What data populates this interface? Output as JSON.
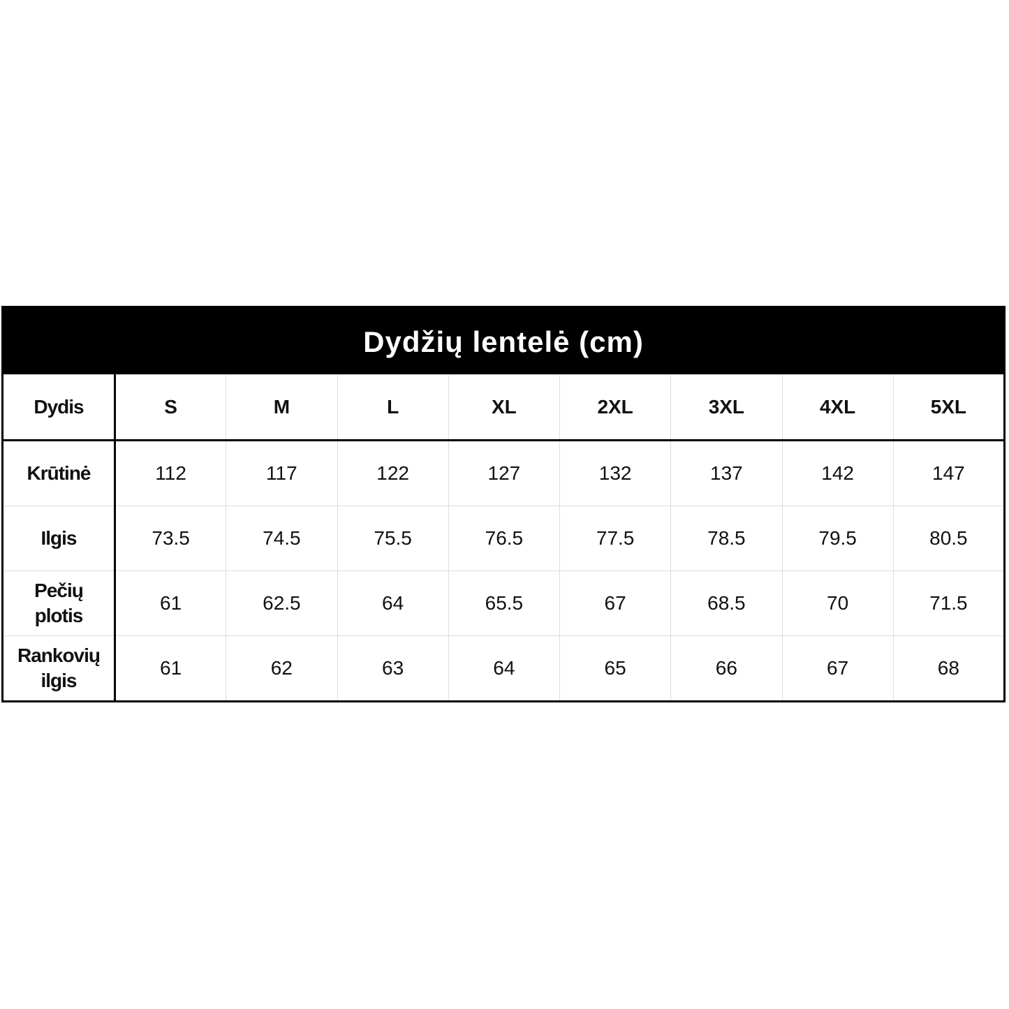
{
  "title": "Dydžių lentelė (cm)",
  "table": {
    "header": [
      "Dydis",
      "S",
      "M",
      "L",
      "XL",
      "2XL",
      "3XL",
      "4XL",
      "5XL"
    ],
    "rows": [
      [
        "Krūtinė",
        112,
        117,
        122,
        127,
        132,
        137,
        142,
        147
      ],
      [
        "Ilgis",
        73.5,
        74.5,
        75.5,
        76.5,
        77.5,
        78.5,
        79.5,
        80.5
      ],
      [
        "Pečių plotis",
        61,
        62.5,
        64,
        65.5,
        67,
        68.5,
        70,
        71.5
      ],
      [
        "Rankovių ilgis",
        61,
        62,
        63,
        64,
        65,
        66,
        67,
        68
      ]
    ]
  }
}
